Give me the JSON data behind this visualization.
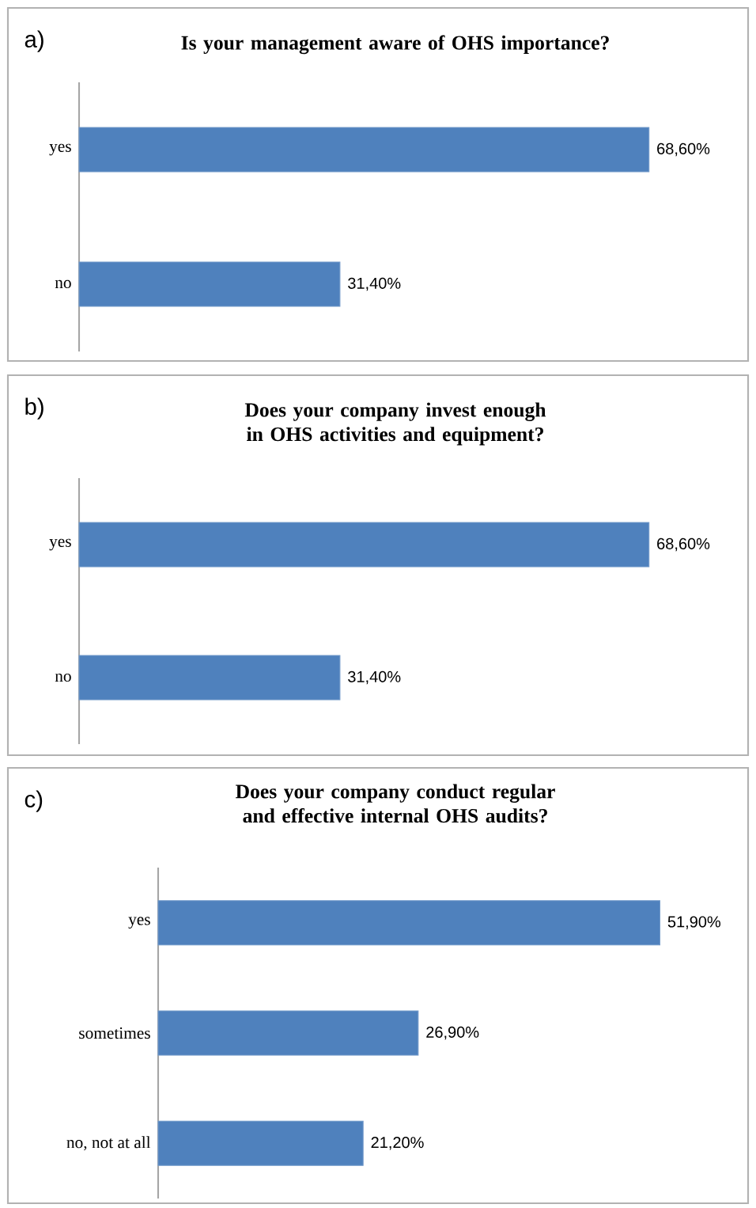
{
  "chart_data": [
    {
      "type": "bar",
      "orientation": "horizontal",
      "title": "Is your management aware of OHS importance?",
      "annotations": [
        "a)"
      ],
      "categories": [
        "yes",
        "no"
      ],
      "values": [
        68.6,
        31.4
      ],
      "value_labels": [
        "68,60%",
        "31,40%"
      ],
      "color": "#4f81bd"
    },
    {
      "type": "bar",
      "orientation": "horizontal",
      "title": "Does your company invest enough in OHS activities and equipment?",
      "annotations": [
        "b)"
      ],
      "categories": [
        "yes",
        "no"
      ],
      "values": [
        68.6,
        31.4
      ],
      "value_labels": [
        "68,60%",
        "31,40%"
      ],
      "color": "#4f81bd"
    },
    {
      "type": "bar",
      "orientation": "horizontal",
      "title": "Does your company conduct regular and effective internal OHS audits?",
      "annotations": [
        "c)"
      ],
      "categories": [
        "yes",
        "sometimes",
        "no, not at all"
      ],
      "values": [
        51.9,
        26.9,
        21.2
      ],
      "value_labels": [
        "51,90%",
        "26,90%",
        "21,20%"
      ],
      "color": "#4f81bd"
    }
  ]
}
